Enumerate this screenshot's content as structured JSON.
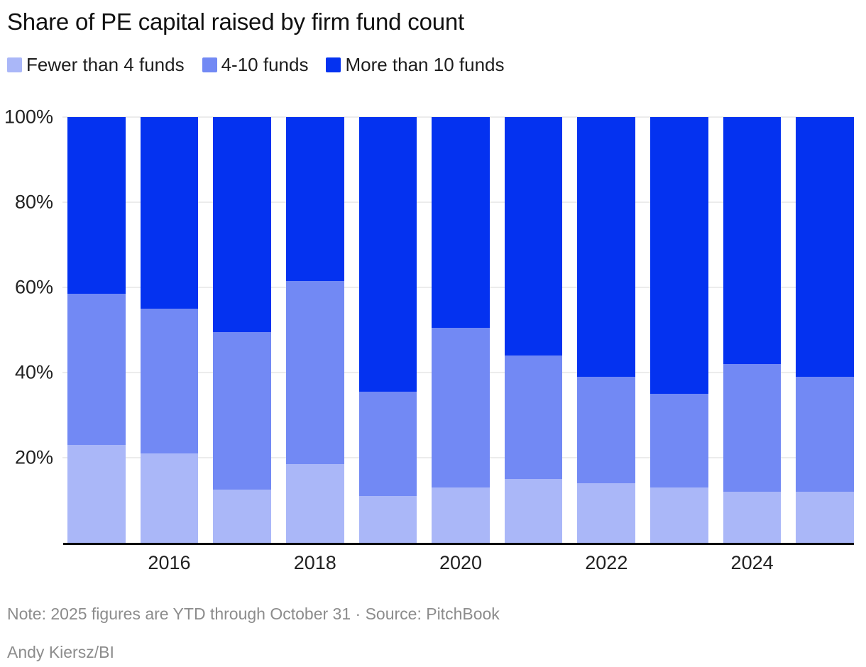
{
  "title": "Share of PE capital raised by firm fund count",
  "legend": [
    {
      "label": "Fewer than 4 funds",
      "color": "#aab7f8"
    },
    {
      "label": "4-10 funds",
      "color": "#7289f4"
    },
    {
      "label": "More than 10 funds",
      "color": "#0432f0"
    }
  ],
  "note": "Note: 2025 figures are YTD through October 31 · Source: PitchBook",
  "byline": "Andy Kiersz/BI",
  "colors": {
    "fewer_than_4": "#aab7f8",
    "four_to_10": "#7289f4",
    "more_than_10": "#0432f0",
    "gridline": "#ececec",
    "axis_line": "#000000",
    "muted_text": "#8c8c8c"
  },
  "chart_data": {
    "type": "bar",
    "stacked": true,
    "title": "Share of PE capital raised by firm fund count",
    "xlabel": "",
    "ylabel": "",
    "ylim": [
      0,
      100
    ],
    "unit": "%",
    "grid": true,
    "legend_position": "top",
    "categories": [
      "2015",
      "2016",
      "2017",
      "2018",
      "2019",
      "2020",
      "2021",
      "2022",
      "2023",
      "2024",
      "2025"
    ],
    "x_tick_labels": [
      "2016",
      "2018",
      "2020",
      "2022",
      "2024"
    ],
    "y_ticks": [
      "100%",
      "80%",
      "60%",
      "40%",
      "20%"
    ],
    "series": [
      {
        "name": "Fewer than 4 funds",
        "color": "#aab7f8",
        "values": [
          23,
          21,
          12.5,
          18.5,
          11,
          13,
          15,
          14,
          13,
          12,
          12
        ]
      },
      {
        "name": "4-10 funds",
        "color": "#7289f4",
        "values": [
          35.5,
          34,
          37,
          43,
          24.5,
          37.5,
          29,
          25,
          22,
          30,
          27
        ]
      },
      {
        "name": "More than 10 funds",
        "color": "#0432f0",
        "values": [
          41.5,
          45,
          50.5,
          38.5,
          64.5,
          49.5,
          56,
          61,
          65,
          58,
          61
        ]
      }
    ]
  }
}
